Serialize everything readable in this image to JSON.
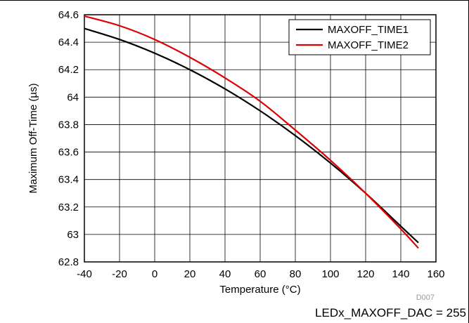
{
  "chart_data": {
    "type": "line",
    "xlabel": "Temperature (°C)",
    "ylabel": "Maximum Off-Time (µs)",
    "xlim": [
      -40,
      160
    ],
    "ylim": [
      62.8,
      64.6
    ],
    "x_ticks": [
      "-40",
      "-20",
      "0",
      "20",
      "40",
      "60",
      "80",
      "100",
      "120",
      "140",
      "160"
    ],
    "y_ticks": [
      "62.8",
      "63",
      "63.2",
      "63.4",
      "63.6",
      "63.8",
      "64",
      "64.2",
      "64.4",
      "64.6"
    ],
    "grid": true,
    "legend_position": "top-right",
    "series": [
      {
        "name": "MAXOFF_TIME1",
        "color": "#000000",
        "x": [
          -40,
          -20,
          0,
          20,
          40,
          60,
          80,
          100,
          120,
          140,
          150
        ],
        "y": [
          64.5,
          64.42,
          64.32,
          64.2,
          64.06,
          63.9,
          63.72,
          63.52,
          63.3,
          63.06,
          62.94
        ]
      },
      {
        "name": "MAXOFF_TIME2",
        "color": "#e00000",
        "x": [
          -40,
          -20,
          0,
          20,
          40,
          60,
          80,
          100,
          120,
          140,
          150
        ],
        "y": [
          64.59,
          64.52,
          64.42,
          64.29,
          64.14,
          63.97,
          63.76,
          63.54,
          63.3,
          63.04,
          62.9
        ]
      }
    ],
    "annotations": {
      "figure_id": "D007",
      "note": "LEDx_MAXOFF_DAC = 255"
    }
  }
}
